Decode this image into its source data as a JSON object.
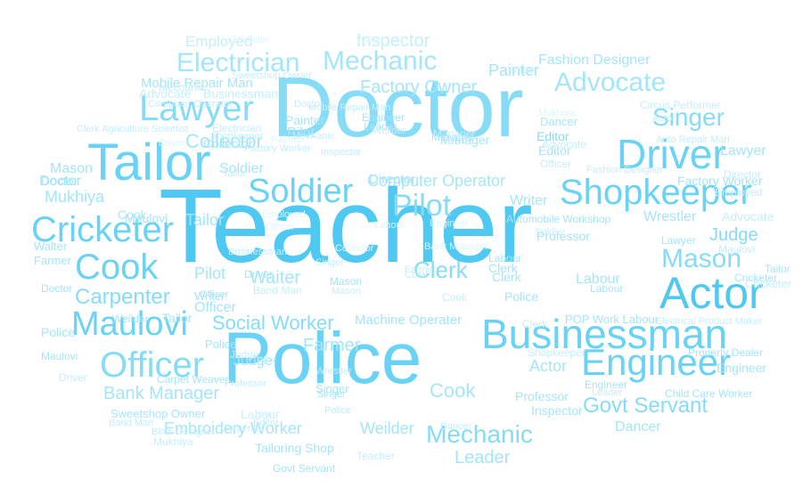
{
  "palette": {
    "c1": "#4fc9f2",
    "c2": "#6ad3f5",
    "c3": "#86dcf7",
    "c4": "#a5e5f9",
    "c5": "#c4eefb",
    "c6": "#ddf5fd"
  },
  "words": [
    {
      "text": "Teacher",
      "color": "c1"
    },
    {
      "text": "Doctor",
      "color": "c3"
    },
    {
      "text": "Police",
      "color": "c2"
    },
    {
      "text": "Tailor",
      "color": "c2"
    },
    {
      "text": "Businessman",
      "color": "c2"
    },
    {
      "text": "Actor",
      "color": "c1"
    },
    {
      "text": "Cricketer",
      "color": "c2"
    },
    {
      "text": "Shopkeeper",
      "color": "c2"
    },
    {
      "text": "Driver",
      "color": "c2"
    },
    {
      "text": "Engineer",
      "color": "c2"
    },
    {
      "text": "Officer",
      "color": "c3"
    },
    {
      "text": "Maulovi",
      "color": "c2"
    },
    {
      "text": "Lawyer",
      "color": "c3"
    },
    {
      "text": "Electrician",
      "color": "c4"
    },
    {
      "text": "Mechanic",
      "color": "c4"
    },
    {
      "text": "Advocate",
      "color": "c4"
    },
    {
      "text": "Soldier",
      "color": "c2"
    },
    {
      "text": "Pilot",
      "color": "c3"
    },
    {
      "text": "Cook",
      "color": "c2"
    },
    {
      "text": "Mason",
      "color": "c3"
    },
    {
      "text": "Singer",
      "color": "c3"
    },
    {
      "text": "Clerk",
      "color": "c3"
    },
    {
      "text": "Mechanic",
      "color": "c3"
    },
    {
      "text": "Govt Servant",
      "color": "c3"
    },
    {
      "text": "Carpenter",
      "color": "c3"
    },
    {
      "text": "Social Worker",
      "color": "c3"
    },
    {
      "text": "Bank Manager",
      "color": "c4"
    },
    {
      "text": "Embroidery Worker",
      "color": "c4"
    },
    {
      "text": "Collector",
      "color": "c4"
    },
    {
      "text": "Factory Owner",
      "color": "c4"
    },
    {
      "text": "Computer Operator",
      "color": "c4"
    },
    {
      "text": "Inspector",
      "color": "c5"
    },
    {
      "text": "Employed",
      "color": "c5"
    },
    {
      "text": "Painter",
      "color": "c4"
    },
    {
      "text": "Fashion Designer",
      "color": "c4"
    },
    {
      "text": "Mobile Repair Man",
      "color": "c4"
    },
    {
      "text": "Businessman",
      "color": "c5"
    },
    {
      "text": "Advocate",
      "color": "c5"
    },
    {
      "text": "Mukhiya",
      "color": "c4"
    },
    {
      "text": "Director",
      "color": "c4"
    },
    {
      "text": "Leader",
      "color": "c4"
    },
    {
      "text": "Writer",
      "color": "c4"
    },
    {
      "text": "Wrestler",
      "color": "c4"
    },
    {
      "text": "Judge",
      "color": "c3"
    },
    {
      "text": "Editor",
      "color": "c3"
    },
    {
      "text": "Farmer",
      "color": "c4"
    },
    {
      "text": "Labour",
      "color": "c4"
    },
    {
      "text": "Dancer",
      "color": "c4"
    },
    {
      "text": "Weilder",
      "color": "c4"
    },
    {
      "text": "Professor",
      "color": "c4"
    },
    {
      "text": "Machine Operater",
      "color": "c4"
    },
    {
      "text": "Sweetshop Owner",
      "color": "c4"
    },
    {
      "text": "Tailoring Shop",
      "color": "c4"
    },
    {
      "text": "Waiter",
      "color": "c4"
    },
    {
      "text": "Factory Worker",
      "color": "c4"
    },
    {
      "text": "Automobile Workshop",
      "color": "c4"
    },
    {
      "text": "Manager",
      "color": "c4"
    },
    {
      "text": "Carpet Weaver",
      "color": "c4"
    },
    {
      "text": "POP Work Labour",
      "color": "c4"
    },
    {
      "text": "Property Dealer",
      "color": "c4"
    },
    {
      "text": "Child Care Worker",
      "color": "c4"
    },
    {
      "text": "Govt Servant",
      "color": "c4"
    },
    {
      "text": "Circus Performer",
      "color": "c5"
    },
    {
      "text": "Auto Repair Man",
      "color": "c5"
    },
    {
      "text": "Clerk Agriculture Scientist",
      "color": "c5"
    },
    {
      "text": "Doctor",
      "color": "c4"
    },
    {
      "text": "Police",
      "color": "c4"
    },
    {
      "text": "Actor",
      "color": "c4"
    },
    {
      "text": "Cook",
      "color": "c4"
    },
    {
      "text": "Pilot",
      "color": "c4"
    },
    {
      "text": "Officer",
      "color": "c4"
    },
    {
      "text": "Tailor",
      "color": "c4"
    },
    {
      "text": "Soldier",
      "color": "c4"
    },
    {
      "text": "Mason",
      "color": "c4"
    },
    {
      "text": "Lawyer",
      "color": "c4"
    },
    {
      "text": "Engineer",
      "color": "c4"
    },
    {
      "text": "Weilder",
      "color": "c4"
    },
    {
      "text": "Cricketer",
      "color": "c4"
    },
    {
      "text": "Maulovi",
      "color": "c4"
    },
    {
      "text": "Tailor",
      "color": "c4"
    },
    {
      "text": "Judge",
      "color": "c4"
    },
    {
      "text": "Collector",
      "color": "c4"
    },
    {
      "text": "Driver",
      "color": "c4"
    },
    {
      "text": "Painter",
      "color": "c4"
    },
    {
      "text": "Mason",
      "color": "c4"
    },
    {
      "text": "Manager",
      "color": "c4"
    },
    {
      "text": "Pilot",
      "color": "c4"
    },
    {
      "text": "Professor",
      "color": "c4"
    },
    {
      "text": "Inspector",
      "color": "c4"
    },
    {
      "text": "Mechanic",
      "color": "c5"
    },
    {
      "text": "Advocate",
      "color": "c5"
    },
    {
      "text": "Singer",
      "color": "c4"
    },
    {
      "text": "Writer",
      "color": "c4"
    },
    {
      "text": "Doctor",
      "color": "c4"
    },
    {
      "text": "Police",
      "color": "c4"
    },
    {
      "text": "Clerk",
      "color": "c4"
    },
    {
      "text": "Labour",
      "color": "c4"
    },
    {
      "text": "Leader",
      "color": "c4"
    },
    {
      "text": "Engineer",
      "color": "c4"
    },
    {
      "text": "Dancer",
      "color": "c4"
    },
    {
      "text": "Editor",
      "color": "c4"
    },
    {
      "text": "Doctor",
      "color": "c4"
    },
    {
      "text": "Farmer",
      "color": "c4"
    },
    {
      "text": "Walter",
      "color": "c4"
    },
    {
      "text": "Maulovi",
      "color": "c4"
    },
    {
      "text": "Cricketer",
      "color": "c5"
    },
    {
      "text": "Driver",
      "color": "c5"
    },
    {
      "text": "Labour",
      "color": "c4"
    },
    {
      "text": "Tailor",
      "color": "c4"
    },
    {
      "text": "Electrician",
      "color": "c5"
    },
    {
      "text": "Cook",
      "color": "c4"
    },
    {
      "text": "Clerk",
      "color": "c4"
    },
    {
      "text": "Police",
      "color": "c4"
    },
    {
      "text": "Officer",
      "color": "c4"
    },
    {
      "text": "Singer",
      "color": "c4"
    },
    {
      "text": "Bindi Designer",
      "color": "c5"
    },
    {
      "text": "Mukhiya",
      "color": "c5"
    },
    {
      "text": "Shopkeeper",
      "color": "c5"
    },
    {
      "text": "Band Man",
      "color": "c5"
    },
    {
      "text": "Manager",
      "color": "c5"
    },
    {
      "text": "Engineer",
      "color": "c4"
    },
    {
      "text": "Director",
      "color": "c5"
    },
    {
      "text": "Lawyer",
      "color": "c4"
    },
    {
      "text": "Employed",
      "color": "c5"
    },
    {
      "text": "Electrical Product Maker",
      "color": "c5"
    },
    {
      "text": "Maulovi",
      "color": "c5"
    },
    {
      "text": "Officer",
      "color": "c5"
    },
    {
      "text": "Cook",
      "color": "c5"
    },
    {
      "text": "Clerk",
      "color": "c5"
    },
    {
      "text": "Labour",
      "color": "c5"
    },
    {
      "text": "Teacher",
      "color": "c5"
    },
    {
      "text": "Weilder",
      "color": "c5"
    },
    {
      "text": "Leader",
      "color": "c5"
    },
    {
      "text": "Wrestler",
      "color": "c5"
    },
    {
      "text": "Doctor",
      "color": "c5"
    },
    {
      "text": "Actor",
      "color": "c5"
    },
    {
      "text": "Tailor",
      "color": "c5"
    },
    {
      "text": "Pilot",
      "color": "c5"
    },
    {
      "text": "Mechanic",
      "color": "c5"
    },
    {
      "text": "Farmer",
      "color": "c5"
    },
    {
      "text": "Judge",
      "color": "c5"
    },
    {
      "text": "Professor",
      "color": "c5"
    },
    {
      "text": "Police",
      "color": "c5"
    },
    {
      "text": "Advocate",
      "color": "c5"
    },
    {
      "text": "Carpenter",
      "color": "c5"
    },
    {
      "text": "Cook",
      "color": "c5"
    },
    {
      "text": "Writer",
      "color": "c5"
    },
    {
      "text": "Inspector",
      "color": "c5"
    },
    {
      "text": "Soldier",
      "color": "c5"
    },
    {
      "text": "Singer",
      "color": "c5"
    },
    {
      "text": "Mason",
      "color": "c5"
    },
    {
      "text": "Businessman",
      "color": "c5"
    },
    {
      "text": "Factory Worker",
      "color": "c5"
    },
    {
      "text": "Shopkeeper",
      "color": "c5"
    },
    {
      "text": "Fashion Designer",
      "color": "c5"
    },
    {
      "text": "Mobile Repair Man",
      "color": "c5"
    },
    {
      "text": "Sweetshop Owner",
      "color": "c5"
    },
    {
      "text": "Computer Operator",
      "color": "c5"
    },
    {
      "text": "Band Man",
      "color": "c5"
    },
    {
      "text": "Employed",
      "color": "c6"
    },
    {
      "text": "Editor",
      "color": "c5"
    },
    {
      "text": "Dancer",
      "color": "c5"
    },
    {
      "text": "Mukhiya",
      "color": "c6"
    },
    {
      "text": "Cricketer",
      "color": "c6"
    },
    {
      "text": "Driver",
      "color": "c6"
    },
    {
      "text": "Painter",
      "color": "c6"
    },
    {
      "text": "Collector",
      "color": "c6"
    },
    {
      "text": "Bank Manager",
      "color": "c6"
    },
    {
      "text": "Labour",
      "color": "c6"
    },
    {
      "text": "Officer",
      "color": "c6"
    },
    {
      "text": "Walter",
      "color": "c6"
    },
    {
      "text": "Soldier",
      "color": "c6"
    },
    {
      "text": "Engineer",
      "color": "c6"
    }
  ]
}
